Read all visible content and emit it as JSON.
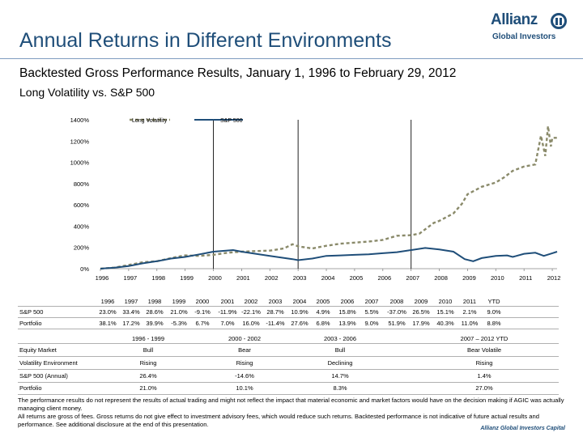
{
  "header": {
    "title": "Annual Returns in Different Environments",
    "subtitle": "Backtested Gross Performance Results, January 1, 1996 to February 29, 2012",
    "subtitle2": "Long Volatility vs. S&P 500",
    "logo_word": "Allianz",
    "logo_sub": "Global Investors"
  },
  "colors": {
    "long_vol": "#8a8a6a",
    "sp500": "#1f4e79",
    "title": "#1f4e79"
  },
  "chart_data": {
    "type": "line",
    "title": "",
    "xlabel": "",
    "ylabel": "",
    "ylim": [
      0,
      1400
    ],
    "y_ticks": [
      "0%",
      "200%",
      "400%",
      "600%",
      "800%",
      "1000%",
      "1200%",
      "1400%"
    ],
    "y_tick_values": [
      0,
      200,
      400,
      600,
      800,
      1000,
      1200,
      1400
    ],
    "x_tick_labels": [
      "1996",
      "1997",
      "1998",
      "1999",
      "2000",
      "2001",
      "2002",
      "2003",
      "2004",
      "2005",
      "2006",
      "2007",
      "2008",
      "2009",
      "2010",
      "2011",
      "2012"
    ],
    "x_range": [
      1996,
      2012.17
    ],
    "legend": [
      "Long Volatility",
      "S&P 500"
    ],
    "series": [
      {
        "name": "Long Volatility",
        "style": "dashed",
        "points": [
          [
            1996,
            0
          ],
          [
            1996.5,
            10
          ],
          [
            1997,
            35
          ],
          [
            1997.5,
            60
          ],
          [
            1998,
            70
          ],
          [
            1998.7,
            110
          ],
          [
            1999,
            125
          ],
          [
            1999.5,
            120
          ],
          [
            2000,
            130
          ],
          [
            2000.5,
            150
          ],
          [
            2001,
            160
          ],
          [
            2001.5,
            165
          ],
          [
            2002,
            170
          ],
          [
            2002.5,
            190
          ],
          [
            2002.8,
            230
          ],
          [
            2003,
            210
          ],
          [
            2003.5,
            190
          ],
          [
            2004,
            215
          ],
          [
            2004.5,
            235
          ],
          [
            2005,
            245
          ],
          [
            2005.5,
            255
          ],
          [
            2006,
            270
          ],
          [
            2006.5,
            310
          ],
          [
            2007,
            315
          ],
          [
            2007.3,
            330
          ],
          [
            2007.5,
            370
          ],
          [
            2007.8,
            430
          ],
          [
            2008,
            450
          ],
          [
            2008.5,
            520
          ],
          [
            2008.8,
            610
          ],
          [
            2009,
            700
          ],
          [
            2009.5,
            770
          ],
          [
            2010,
            810
          ],
          [
            2010.3,
            860
          ],
          [
            2010.6,
            920
          ],
          [
            2011,
            960
          ],
          [
            2011.4,
            980
          ],
          [
            2011.6,
            1250
          ],
          [
            2011.75,
            1060
          ],
          [
            2011.85,
            1340
          ],
          [
            2011.95,
            1150
          ],
          [
            2012,
            1230
          ],
          [
            2012.17,
            1230
          ]
        ]
      },
      {
        "name": "S&P 500",
        "style": "solid",
        "points": [
          [
            1996,
            0
          ],
          [
            1996.5,
            10
          ],
          [
            1997,
            25
          ],
          [
            1997.5,
            50
          ],
          [
            1998,
            70
          ],
          [
            1998.5,
            95
          ],
          [
            1999,
            110
          ],
          [
            1999.5,
            135
          ],
          [
            2000,
            160
          ],
          [
            2000.7,
            175
          ],
          [
            2001,
            160
          ],
          [
            2001.5,
            140
          ],
          [
            2002,
            120
          ],
          [
            2002.8,
            90
          ],
          [
            2003,
            80
          ],
          [
            2003.5,
            95
          ],
          [
            2004,
            120
          ],
          [
            2004.5,
            125
          ],
          [
            2005,
            130
          ],
          [
            2005.5,
            135
          ],
          [
            2006,
            145
          ],
          [
            2006.5,
            155
          ],
          [
            2007,
            175
          ],
          [
            2007.5,
            195
          ],
          [
            2008,
            180
          ],
          [
            2008.5,
            160
          ],
          [
            2008.9,
            90
          ],
          [
            2009.2,
            70
          ],
          [
            2009.5,
            100
          ],
          [
            2010,
            120
          ],
          [
            2010.4,
            125
          ],
          [
            2010.6,
            110
          ],
          [
            2011,
            140
          ],
          [
            2011.4,
            150
          ],
          [
            2011.7,
            120
          ],
          [
            2012,
            145
          ],
          [
            2012.17,
            160
          ]
        ]
      }
    ]
  },
  "returns_table": {
    "years": [
      "1996",
      "1997",
      "1998",
      "1999",
      "2000",
      "2001",
      "2002",
      "2003",
      "2004",
      "2005",
      "2006",
      "2007",
      "2008",
      "2009",
      "2010",
      "2011",
      "YTD"
    ],
    "rows": [
      {
        "label": "S&P 500",
        "values": [
          "23.0%",
          "33.4%",
          "28.6%",
          "21.0%",
          "-9.1%",
          "-11.9%",
          "-22.1%",
          "28.7%",
          "10.9%",
          "4.9%",
          "15.8%",
          "5.5%",
          "-37.0%",
          "26.5%",
          "15.1%",
          "2.1%",
          "9.0%"
        ]
      },
      {
        "label": "Portfolio",
        "values": [
          "38.1%",
          "17.2%",
          "39.9%",
          "-5.3%",
          "6.7%",
          "7.0%",
          "16.0%",
          "-11.4%",
          "27.6%",
          "6.8%",
          "13.9%",
          "9.0%",
          "51.9%",
          "17.9%",
          "40.3%",
          "11.0%",
          "8.8%"
        ]
      }
    ]
  },
  "environment_table": {
    "periods": [
      "1996 - 1999",
      "2000 - 2002",
      "2003 - 2006",
      "2007 – 2012 YTD"
    ],
    "rows": [
      {
        "label": "Equity Market",
        "values": [
          "Bull",
          "Bear",
          "Bull",
          "Bear Volatile"
        ]
      },
      {
        "label": "Volatility Environment",
        "values": [
          "Rising",
          "Rising",
          "Declining",
          "Rising"
        ]
      },
      {
        "label": "S&P 500 (Annual)",
        "values": [
          "26.4%",
          "-14.6%",
          "14.7%",
          "1.4%"
        ]
      },
      {
        "label": "Portfolio",
        "values": [
          "21.0%",
          "10.1%",
          "8.3%",
          "27.0%"
        ]
      }
    ]
  },
  "disclaimer": [
    "The performance results do not represent the results of actual trading and might not reflect the impact that material economic and market factors would have on the decision making if AGIC was actually managing client money.",
    "All returns are gross of fees. Gross returns do not give effect to investment advisory fees, which would reduce such returns. Backtested performance is not indicative of future actual results and performance. See additional disclosure at the end of this presentation."
  ],
  "footer_brand": "Allianz Global Investors Capital"
}
